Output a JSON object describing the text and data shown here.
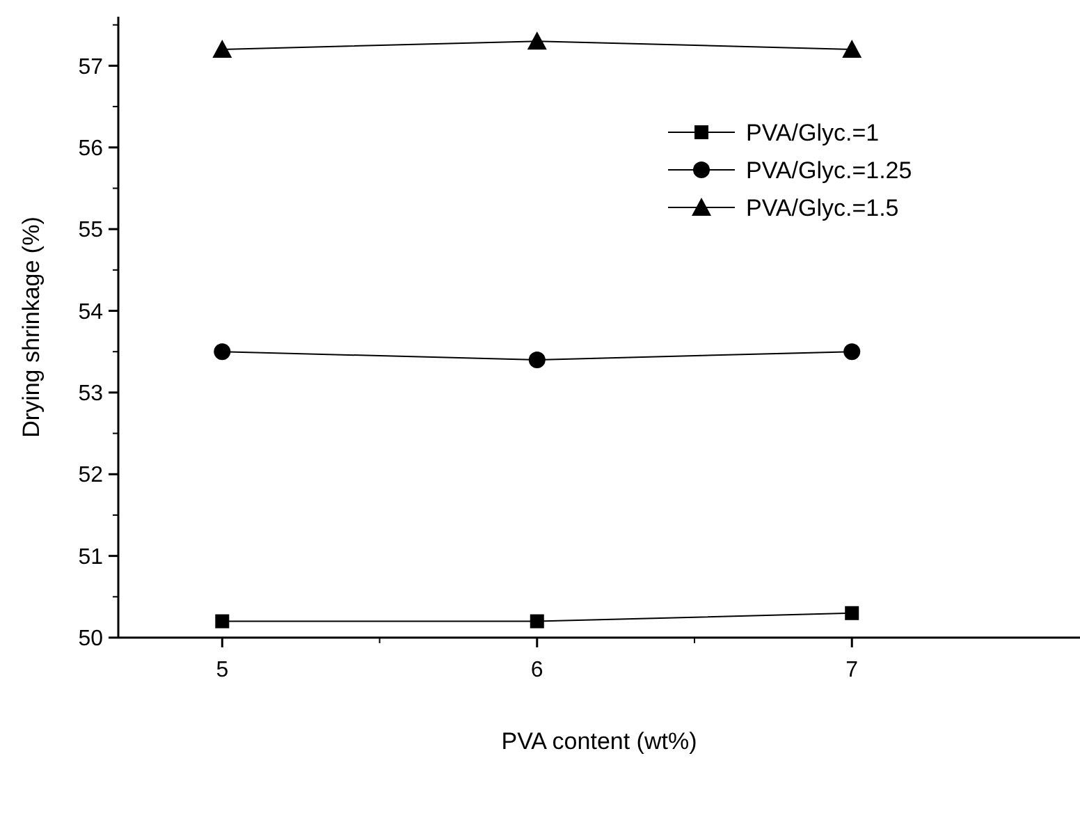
{
  "chart_data": {
    "type": "line",
    "xlabel": "PVA content (wt%)",
    "ylabel": "Drying shrinkage (%)",
    "x": [
      5,
      6,
      7
    ],
    "series": [
      {
        "name": "PVA/Glyc.=1",
        "color": "#000000",
        "marker": "square",
        "values": [
          50.2,
          50.2,
          50.3
        ]
      },
      {
        "name": "PVA/Glyc.=1.25",
        "color": "#000000",
        "marker": "circle",
        "values": [
          53.5,
          53.4,
          53.5
        ]
      },
      {
        "name": "PVA/Glyc.=1.5",
        "color": "#000000",
        "marker": "triangle",
        "values": [
          57.2,
          57.3,
          57.2
        ]
      }
    ],
    "xlim": [
      4.67,
      7.72
    ],
    "xticks": [
      5,
      6,
      7
    ],
    "ylim": [
      50,
      57.6
    ],
    "yticks": [
      50,
      51,
      52,
      53,
      54,
      55,
      56,
      57
    ],
    "grid": false,
    "legend": "top right",
    "line_style": "solid"
  }
}
